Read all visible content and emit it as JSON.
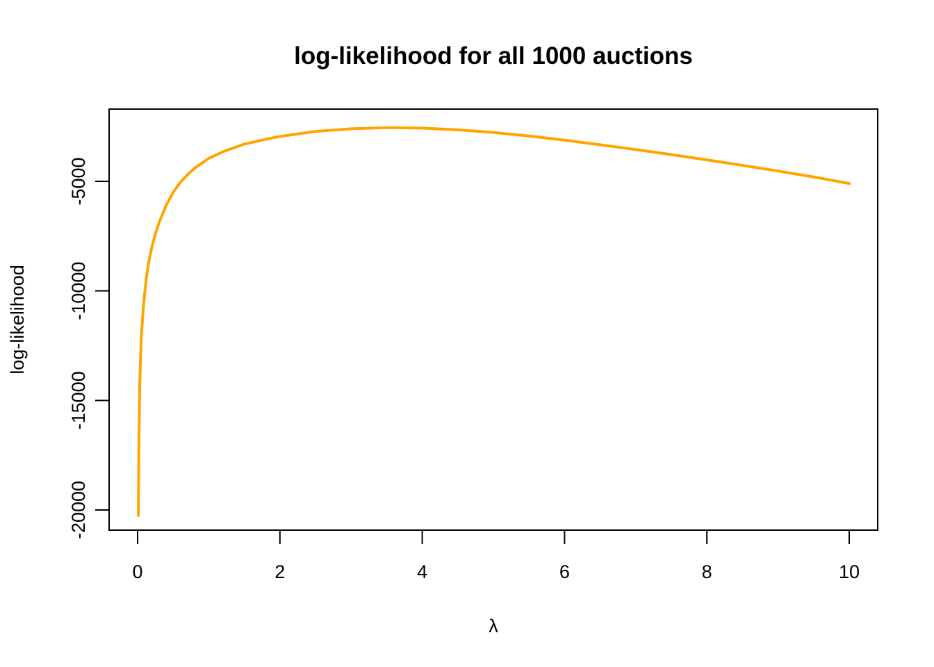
{
  "chart_data": {
    "type": "line",
    "title": "log-likelihood for all 1000 auctions",
    "xlabel": "λ",
    "ylabel": "log-likelihood",
    "xlim": [
      0,
      10
    ],
    "ylim": [
      -20000,
      -5000
    ],
    "x_ticks": [
      0,
      2,
      4,
      6,
      8,
      10
    ],
    "y_ticks": [
      -5000,
      -10000,
      -15000,
      -20000
    ],
    "x_tick_labels": [
      "0",
      "2",
      "4",
      "6",
      "8",
      "10"
    ],
    "y_tick_labels": [
      "-5000",
      "-10000",
      "-15000",
      "-20000"
    ],
    "series": [
      {
        "color": "#FFA500",
        "x": [
          0.01,
          0.02,
          0.03,
          0.05,
          0.08,
          0.1,
          0.12,
          0.15,
          0.2,
          0.25,
          0.3,
          0.4,
          0.5,
          0.6,
          0.7,
          0.8,
          1.0,
          1.2,
          1.5,
          1.8,
          2.0,
          2.5,
          3.0,
          3.5,
          3.6,
          4.0,
          4.5,
          5.0,
          5.5,
          6.0,
          6.5,
          7.0,
          7.5,
          8.0,
          8.5,
          9.0,
          9.5,
          10.0
        ],
        "y": [
          -20250,
          -16500,
          -14300,
          -12200,
          -10800,
          -10100,
          -9500,
          -8800,
          -8000,
          -7400,
          -6900,
          -6100,
          -5500,
          -5050,
          -4700,
          -4400,
          -3950,
          -3650,
          -3300,
          -3080,
          -2950,
          -2720,
          -2600,
          -2550,
          -2550,
          -2570,
          -2650,
          -2770,
          -2930,
          -3120,
          -3330,
          -3550,
          -3780,
          -4020,
          -4270,
          -4530,
          -4800,
          -5100
        ]
      }
    ]
  }
}
